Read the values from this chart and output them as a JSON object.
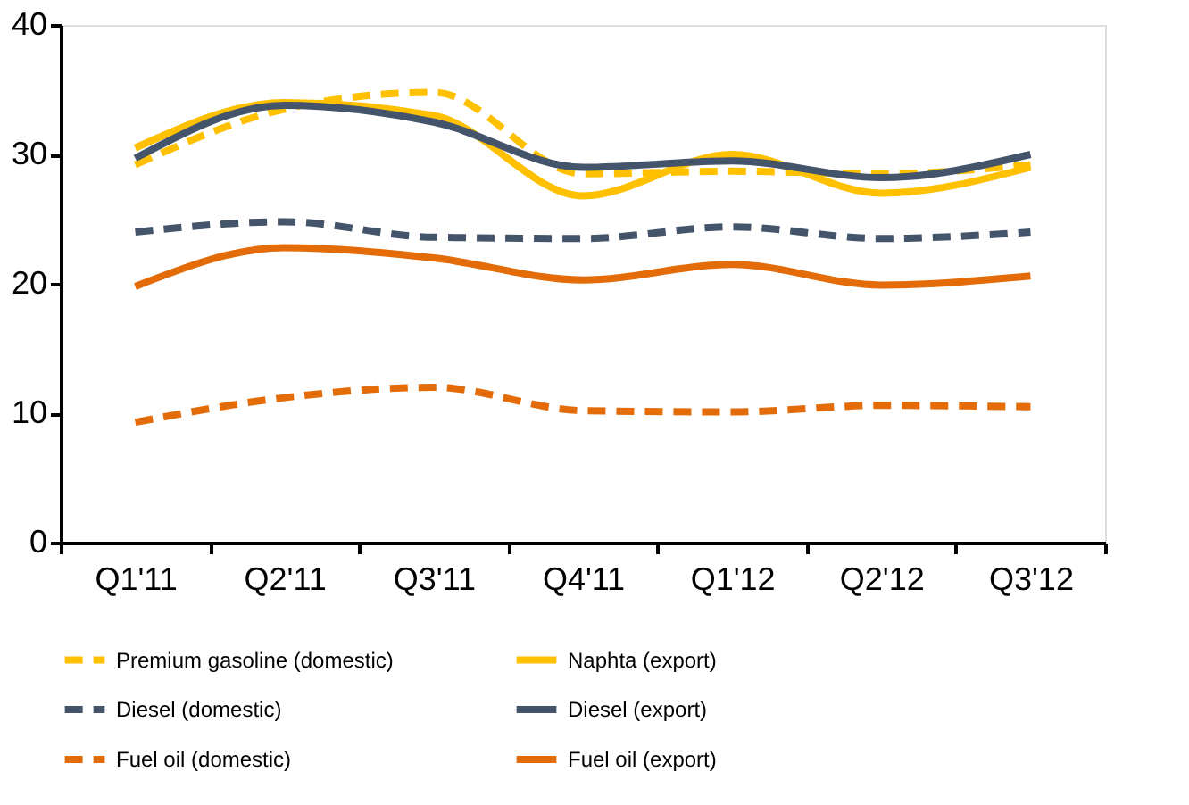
{
  "chart_data": {
    "type": "line",
    "categories": [
      "Q1'11",
      "Q2'11",
      "Q3'11",
      "Q4'11",
      "Q1'12",
      "Q2'12",
      "Q3'12"
    ],
    "series": [
      {
        "name": "Premium gasoline (domestic)",
        "color": "#ffc000",
        "line_style": "dashed",
        "values": [
          29.2,
          33.5,
          34.8,
          28.5,
          28.7,
          28.5,
          29.2
        ]
      },
      {
        "name": "Naphta (export)",
        "color": "#ffc000",
        "line_style": "solid",
        "values": [
          30.5,
          34.0,
          33.0,
          26.8,
          30.0,
          27.0,
          29.0
        ]
      },
      {
        "name": "Diesel (domestic)",
        "color": "#44546a",
        "line_style": "dashed",
        "values": [
          24.0,
          24.8,
          23.6,
          23.5,
          24.4,
          23.5,
          24.0
        ]
      },
      {
        "name": "Diesel (export)",
        "color": "#44546a",
        "line_style": "solid",
        "values": [
          29.7,
          33.8,
          32.5,
          29.0,
          29.5,
          28.2,
          30.0
        ]
      },
      {
        "name": "Fuel oil (domestic)",
        "color": "#e36c09",
        "line_style": "dashed",
        "values": [
          9.3,
          11.2,
          12.0,
          10.2,
          10.1,
          10.6,
          10.5
        ]
      },
      {
        "name": "Fuel oil (export)",
        "color": "#e36c09",
        "line_style": "solid",
        "values": [
          19.8,
          22.8,
          22.0,
          20.3,
          21.5,
          19.9,
          20.6
        ]
      }
    ],
    "ylim": [
      0,
      40
    ],
    "yticks": [
      0,
      10,
      20,
      30,
      40
    ],
    "grid": false,
    "legend": "bottom",
    "marker": "none"
  }
}
